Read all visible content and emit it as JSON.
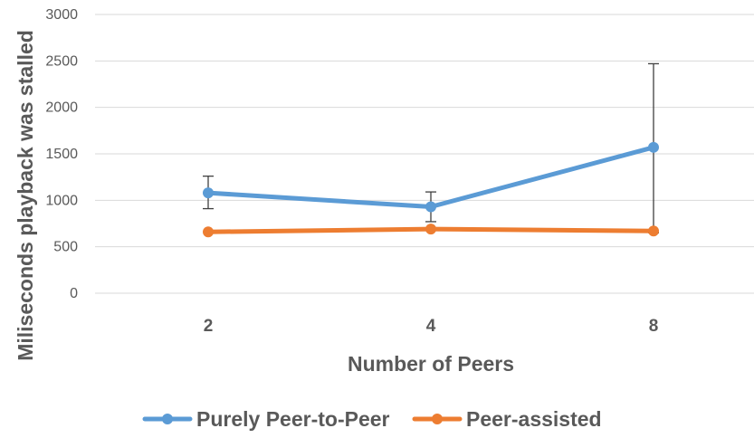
{
  "chart_data": {
    "type": "line",
    "categories": [
      "2",
      "4",
      "8"
    ],
    "xlabel": "Number of Peers",
    "ylabel": "Miliseconds playback was stalled",
    "ylim": [
      0,
      3000
    ],
    "yticks": [
      0,
      500,
      1000,
      1500,
      2000,
      2500,
      3000
    ],
    "grid": true,
    "legend_position": "bottom",
    "series": [
      {
        "name": "Purely Peer-to-Peer",
        "color": "#5B9BD5",
        "values": [
          1080,
          930,
          1570
        ],
        "error_low": [
          910,
          770,
          650
        ],
        "error_high": [
          1260,
          1090,
          2470
        ]
      },
      {
        "name": "Peer-assisted",
        "color": "#ED7D31",
        "values": [
          660,
          690,
          670
        ]
      }
    ]
  }
}
